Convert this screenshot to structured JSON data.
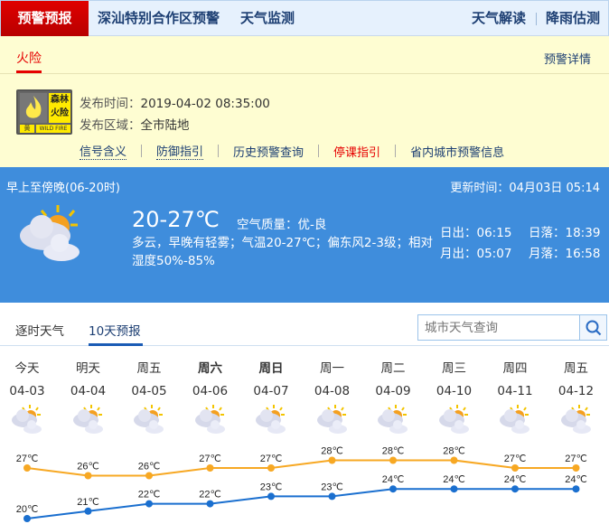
{
  "nav": {
    "active": "预警预报",
    "links": [
      "深汕特别合作区预警",
      "天气监测"
    ],
    "right": [
      "天气解读",
      "降雨估测"
    ]
  },
  "warning": {
    "tab": "火险",
    "detail_link": "预警详情",
    "badge": {
      "cn": "森林火险",
      "level": "黄",
      "en": "WILD FIRE"
    },
    "time_label": "发布时间：",
    "time": "2019-04-02 08:35:00",
    "area_label": "发布区域：",
    "area": "全市陆地",
    "links": [
      "信号含义",
      "防御指引",
      "历史预警查询",
      "停课指引",
      "省内城市预警信息"
    ]
  },
  "now": {
    "period": "早上至傍晚(06-20时)",
    "update": "更新时间：04月03日 05:14",
    "temp": "20-27℃",
    "air": "空气质量：优-良",
    "desc": "多云，早晚有轻雾；气温20-27℃；偏东风2-3级；相对湿度50%-85%",
    "sunrise": "日出：06:15",
    "sunset": "日落：18:39",
    "moonrise": "月出：05:07",
    "moonset": "月落：16:58"
  },
  "tabs": [
    "逐时天气",
    "10天预报"
  ],
  "search": {
    "placeholder": "城市天气查询"
  },
  "forecast": [
    {
      "day": "今天",
      "date": "04-03",
      "high": 27,
      "low": 20,
      "bold": false
    },
    {
      "day": "明天",
      "date": "04-04",
      "high": 26,
      "low": 21,
      "bold": false
    },
    {
      "day": "周五",
      "date": "04-05",
      "high": 26,
      "low": 22,
      "bold": false
    },
    {
      "day": "周六",
      "date": "04-06",
      "high": 27,
      "low": 22,
      "bold": true
    },
    {
      "day": "周日",
      "date": "04-07",
      "high": 27,
      "low": 23,
      "bold": true
    },
    {
      "day": "周一",
      "date": "04-08",
      "high": 28,
      "low": 23,
      "bold": false
    },
    {
      "day": "周二",
      "date": "04-09",
      "high": 28,
      "low": 24,
      "bold": false
    },
    {
      "day": "周三",
      "date": "04-10",
      "high": 28,
      "low": 24,
      "bold": false
    },
    {
      "day": "周四",
      "date": "04-11",
      "high": 27,
      "low": 24,
      "bold": false
    },
    {
      "day": "周五",
      "date": "04-12",
      "high": 27,
      "low": 24,
      "bold": false
    }
  ],
  "colors": {
    "high": "#f7a823",
    "low": "#1a6fcf",
    "nav_active": "#d40000",
    "panel": "#3f8ddc"
  }
}
